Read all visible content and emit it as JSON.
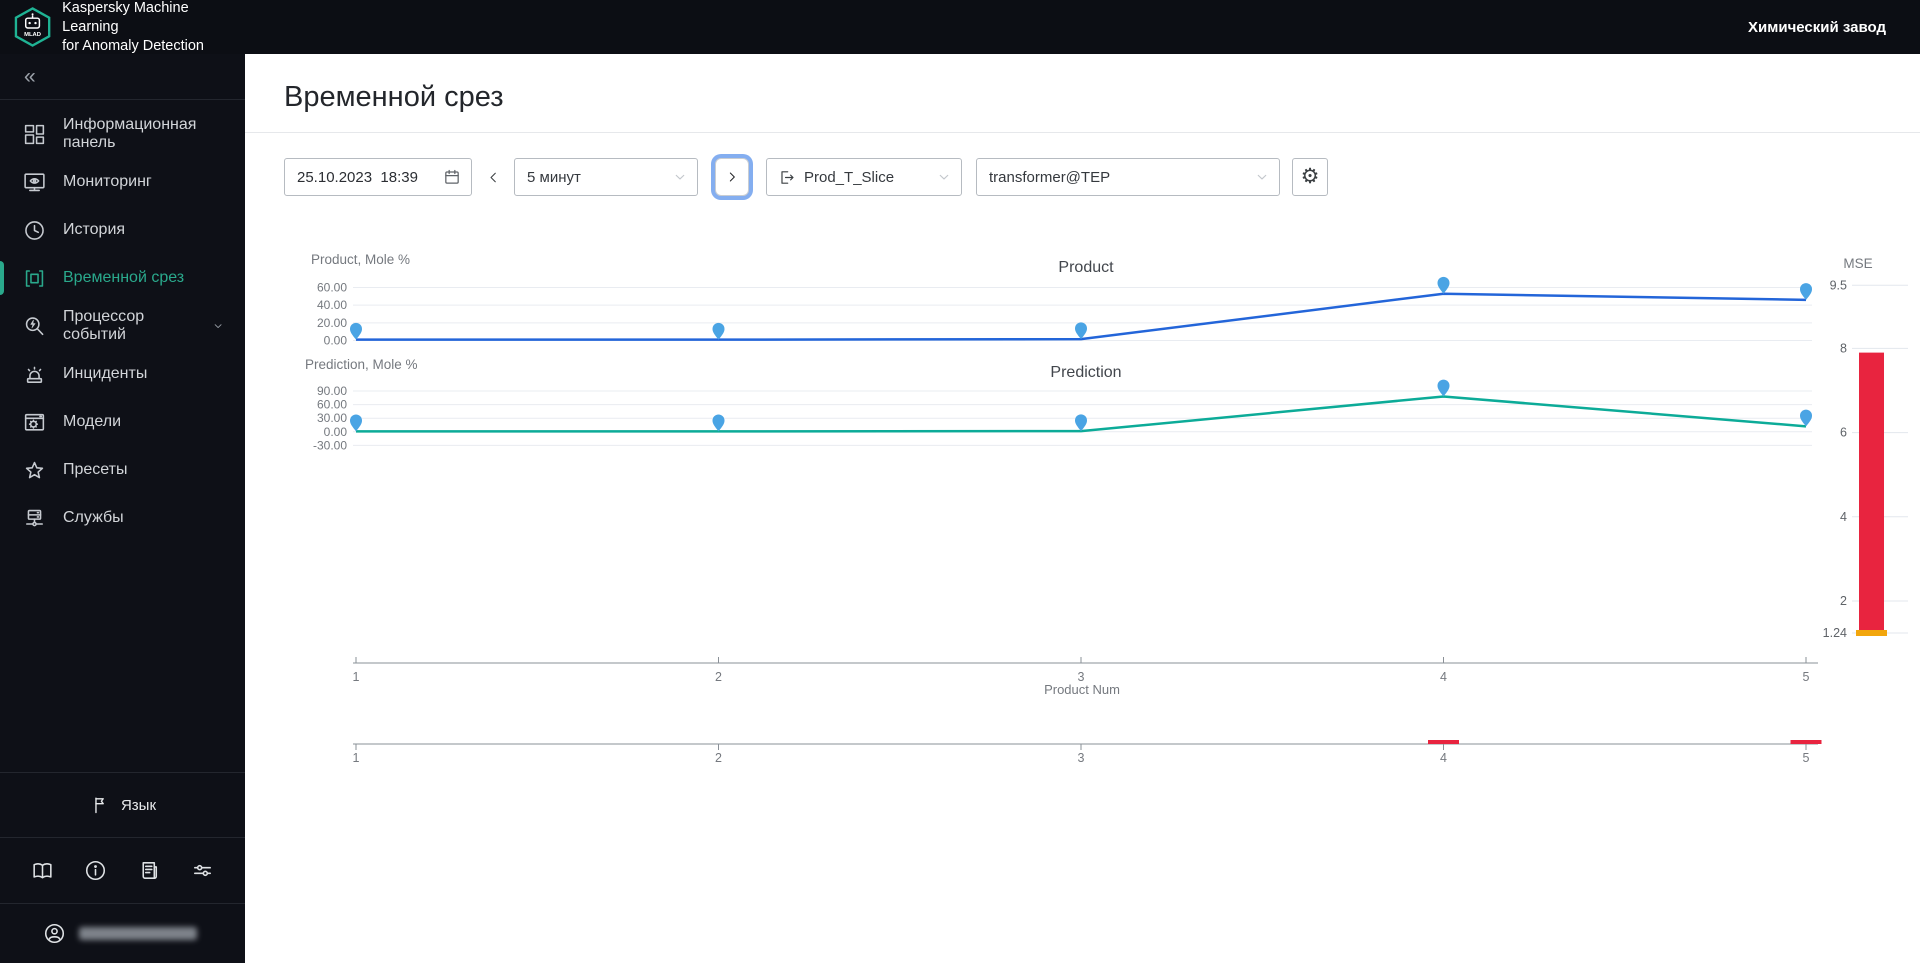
{
  "colors": {
    "accent": "#2aa98c",
    "sidebar_bg": "#0e1017"
  },
  "header": {
    "logo_text": "MLAD",
    "app_title_line1": "Kaspersky Machine Learning",
    "app_title_line2": "for Anomaly Detection",
    "plant_name": "Химический завод"
  },
  "sidebar": {
    "collapse_glyph": "«",
    "items": [
      {
        "label": "Информационная панель",
        "icon": "dashboard-icon",
        "active": false
      },
      {
        "label": "Мониторинг",
        "icon": "monitoring-icon",
        "active": false
      },
      {
        "label": "История",
        "icon": "history-icon",
        "active": false
      },
      {
        "label": "Временной срез",
        "icon": "time-slice-icon",
        "active": true
      },
      {
        "label": "Процессор событий",
        "icon": "event-processor-icon",
        "active": false,
        "has_submenu": true
      },
      {
        "label": "Инциденты",
        "icon": "incidents-icon",
        "active": false
      },
      {
        "label": "Модели",
        "icon": "models-icon",
        "active": false
      },
      {
        "label": "Пресеты",
        "icon": "presets-icon",
        "active": false
      },
      {
        "label": "Службы",
        "icon": "services-icon",
        "active": false
      }
    ],
    "language_label": "Язык",
    "footer_icons": [
      "book-icon",
      "info-icon",
      "changelog-icon",
      "sliders-icon"
    ]
  },
  "page": {
    "title": "Временной срез"
  },
  "toolbar": {
    "datetime_value": "25.10.2023  18:39",
    "interval_value": "5 минут",
    "slice_value": "Prod_T_Slice",
    "model_value": "transformer@TEP"
  },
  "chart_data": [
    {
      "type": "line",
      "title": "Product",
      "axis_label": "Product, Mole %",
      "x": [
        1,
        2,
        3,
        4,
        5
      ],
      "values": [
        1.0,
        1.0,
        1.5,
        53,
        46
      ],
      "yticks": [
        "60.00",
        "40.00",
        "20.00",
        "0.00"
      ],
      "line_color": "#2365d9",
      "marker_color": "#4aa4e4",
      "grid": true,
      "xlim": [
        1,
        5
      ]
    },
    {
      "type": "line",
      "title": "Prediction",
      "axis_label": "Prediction, Mole %",
      "x": [
        1,
        2,
        3,
        4,
        5
      ],
      "values": [
        1.0,
        1.0,
        1.5,
        78,
        12
      ],
      "yticks": [
        "90.00",
        "60.00",
        "30.00",
        "0.00",
        "-30.00"
      ],
      "line_color": "#0cab98",
      "marker_color": "#4aa4e4",
      "grid": true,
      "xlim": [
        1,
        5
      ]
    },
    {
      "type": "bar",
      "title": "MSE",
      "values": [
        7.9
      ],
      "bar_base": 1.24,
      "yticks": [
        "9.5",
        "8",
        "6",
        "4",
        "2",
        "1.24"
      ],
      "bar_color": "#e8243f",
      "threshold_value": 1.24,
      "threshold_color": "#f2a60d"
    },
    {
      "type": "axis",
      "xlabel": "Product Num",
      "ticks": [
        "1",
        "2",
        "3",
        "4",
        "5"
      ]
    },
    {
      "type": "axis",
      "role": "overview",
      "ticks": [
        "1",
        "2",
        "3",
        "4",
        "5"
      ],
      "anomaly_ticks": [
        4,
        5
      ],
      "anomaly_color": "#e8243f"
    }
  ]
}
